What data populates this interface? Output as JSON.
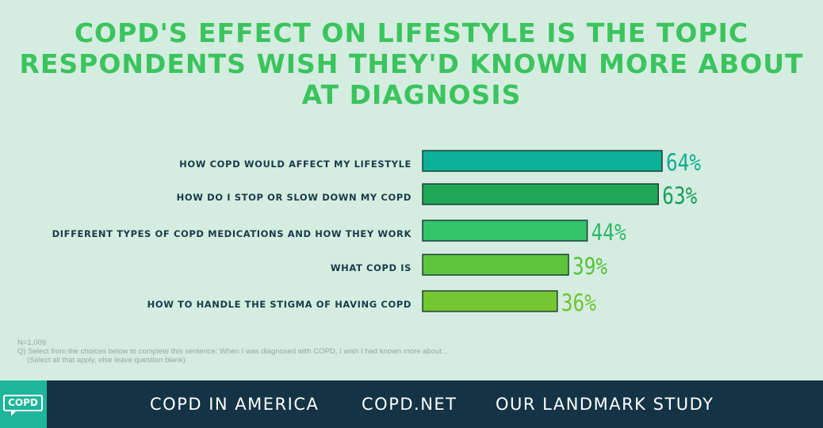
{
  "title": {
    "line1": "COPD'S EFFECT ON LIFESTYLE IS THE TOPIC",
    "line2": "RESPONDENTS WISH THEY'D KNOWN MORE ABOUT",
    "line3": "AT DIAGNOSIS"
  },
  "chart_data": {
    "type": "bar",
    "orientation": "horizontal",
    "title": "COPD'S EFFECT ON LIFESTYLE IS THE TOPIC RESPONDENTS WISH THEY'D KNOWN MORE ABOUT AT DIAGNOSIS",
    "xlabel": "",
    "ylabel": "",
    "xlim": [
      0,
      100
    ],
    "categories": [
      "HOW COPD WOULD AFFECT MY LIFESTYLE",
      "HOW DO I STOP OR SLOW DOWN MY COPD",
      "DIFFERENT TYPES OF COPD MEDICATIONS AND HOW THEY WORK",
      "WHAT COPD IS",
      "HOW TO HANDLE THE STIGMA OF HAVING COPD"
    ],
    "values": [
      64,
      63,
      44,
      39,
      36
    ],
    "value_labels": [
      "64%",
      "63%",
      "44%",
      "39%",
      "36%"
    ],
    "colors": [
      "#0db198",
      "#1fa858",
      "#33c46a",
      "#5ec43d",
      "#74c732"
    ],
    "label_colors": [
      "#0fae93",
      "#179f56",
      "#2eb866",
      "#57c23a",
      "#70c430"
    ]
  },
  "footnote": {
    "n": "N=1,009",
    "question": "Q) Select from the choices below to complete this sentence: When I was diagnosed with COPD, I wish I had known more about...",
    "instruction": "(Select all that apply, else leave question blank)"
  },
  "footer": {
    "logo_text": "COPD",
    "links": [
      "COPD IN AMERICA",
      "COPD.NET",
      "OUR LANDMARK STUDY"
    ]
  }
}
